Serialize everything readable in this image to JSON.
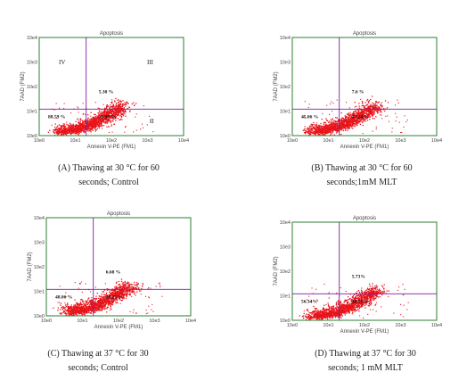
{
  "colors": {
    "frame": "#2e7d32",
    "gate": "#7b1fa2",
    "dots": "#e8141b",
    "axis_text": "#444444"
  },
  "chart_data": [
    {
      "type": "scatter",
      "title": "Apoptosis",
      "xlabel": "Annexin V-PE (FM1)",
      "ylabel": "7AAD (FM2)",
      "xscale": "log",
      "yscale": "log",
      "xlim": [
        1,
        10000
      ],
      "ylim": [
        1,
        10000
      ],
      "ticks": [
        "10e0",
        "10e1",
        "10e2",
        "10e3",
        "10e4"
      ],
      "gate": {
        "x": 20,
        "y": 12
      },
      "quadrant_labels": [
        "IV",
        "III",
        "II"
      ],
      "quadrant_values": {
        "upper_right": "5.30 %",
        "lower_left": "88.59 %",
        "lower_right": "35.98 %"
      },
      "caption": [
        "(A) Thawing at 30 °C for 60",
        "seconds; Control"
      ]
    },
    {
      "type": "scatter",
      "title": "Apoptosis",
      "xlabel": "Annexin V-PE (FM1)",
      "ylabel": "7AAD (FM2)",
      "xscale": "log",
      "yscale": "log",
      "xlim": [
        1,
        10000
      ],
      "ylim": [
        1,
        10000
      ],
      "ticks": [
        "10e0",
        "10e1",
        "10e2",
        "10e3",
        "10e4"
      ],
      "gate": {
        "x": 20,
        "y": 12
      },
      "quadrant_labels": [],
      "quadrant_values": {
        "upper_right": "7.6 %",
        "lower_left": "45.06 %",
        "lower_right": "47.24 %"
      },
      "caption": [
        "(B) Thawing at 30 °C for 60",
        "seconds;1mM MLT"
      ]
    },
    {
      "type": "scatter",
      "title": "Apoptosis",
      "xlabel": "Annexin V-PE (FM1)",
      "ylabel": "7AAD (FM2)",
      "xscale": "log",
      "yscale": "log",
      "xlim": [
        1,
        10000
      ],
      "ylim": [
        1,
        10000
      ],
      "ticks": [
        "10e0",
        "10e1",
        "10e2",
        "10e3",
        "10e4"
      ],
      "gate": {
        "x": 20,
        "y": 12
      },
      "quadrant_labels": [],
      "quadrant_values": {
        "upper_right": "6.68 %",
        "lower_left": "48.06 %",
        "lower_right": "50.25 %"
      },
      "caption": [
        "(C) Thawing at 37 °C for 30",
        "seconds; Control"
      ]
    },
    {
      "type": "scatter",
      "title": "Apoptosis",
      "xlabel": "Annexin V-PE (FM1)",
      "ylabel": "7AAD (FM2)",
      "xscale": "log",
      "yscale": "log",
      "xlim": [
        1,
        10000
      ],
      "ylim": [
        1,
        10000
      ],
      "ticks": [
        "10e0",
        "10e1",
        "10e2",
        "10e3",
        "10e4"
      ],
      "gate": {
        "x": 20,
        "y": 12
      },
      "quadrant_labels": [],
      "quadrant_values": {
        "upper_right": "5.73%",
        "lower_left": "56.34%",
        "lower_right": "38.51%"
      },
      "caption": [
        "(D) Thawing at 37 °C for 30",
        "seconds; 1 mM MLT"
      ]
    }
  ]
}
